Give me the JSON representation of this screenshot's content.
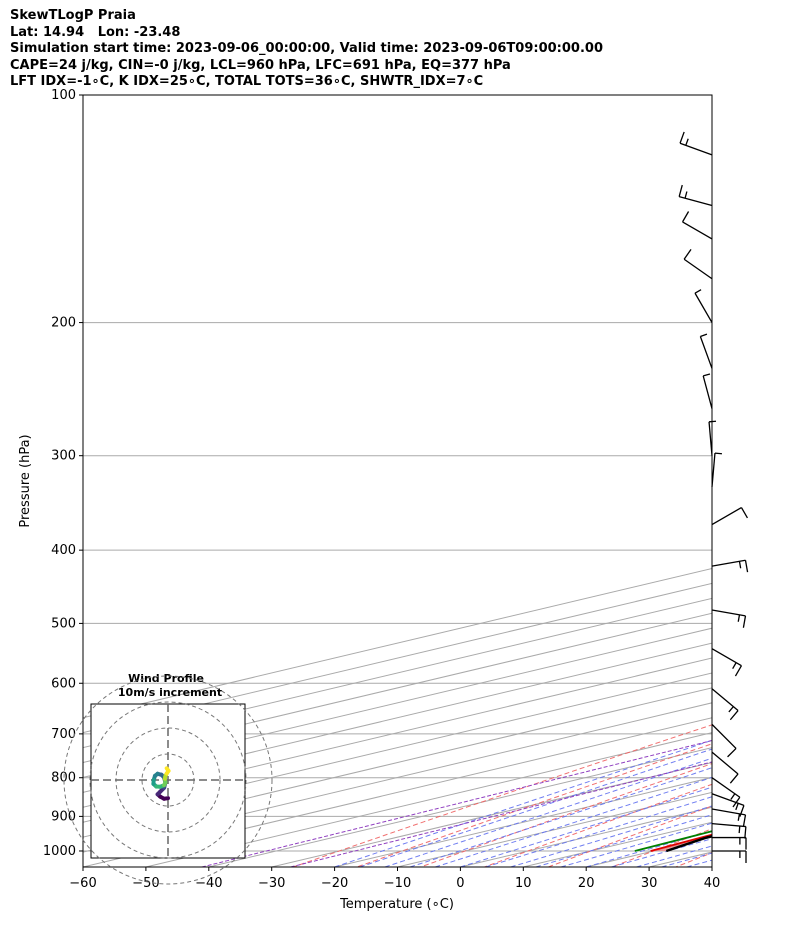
{
  "header": {
    "lines": [
      "SkewTLogP Praia",
      "Lat: 14.94   Lon: -23.48",
      "Simulation start time: 2023-09-06_00:00:00, Valid time: 2023-09-06T09:00:00.00",
      "CAPE=24 j/kg, CIN=-0 j/kg, LCL=960 hPa, LFC=691 hPa, EQ=377 hPa",
      "LFT IDX=-1∘C, K IDX=25∘C, TOTAL TOTS=36∘C, SHWTR_IDX=7∘C"
    ]
  },
  "colors": {
    "temperature": "#e00000",
    "dewpoint": "#008000",
    "parcel": "#000000",
    "cape_fill": "#f08080",
    "cin_fill": "#7bafd4",
    "dry_adiabat": "#f06060",
    "moist_adiabat": "#6070f0",
    "mixing_ratio": "#9040c0",
    "isotherm": "#aaaaaa"
  },
  "chart_data": [
    {
      "type": "line",
      "subtype": "skew-T log-P diagram",
      "xlabel": "Temperature (∘C)",
      "ylabel": "Pressure (hPa)",
      "xlim": [
        -60,
        40
      ],
      "ylim": [
        1050,
        100
      ],
      "y_scale": "log",
      "x_ticks": [
        "−60",
        "−50",
        "−40",
        "−30",
        "−20",
        "−10",
        "0",
        "10",
        "20",
        "30",
        "40"
      ],
      "x_tick_values": [
        -60,
        -50,
        -40,
        -30,
        -20,
        -10,
        0,
        10,
        20,
        30,
        40
      ],
      "y_ticks": [
        "100",
        "200",
        "300",
        "400",
        "500",
        "600",
        "700",
        "800",
        "900",
        "1000"
      ],
      "y_tick_values": [
        100,
        200,
        300,
        400,
        500,
        600,
        700,
        800,
        900,
        1000
      ],
      "grid": true,
      "series": [
        {
          "role": "temperature",
          "points": [
            [
              100,
              -4.5
            ],
            [
              105,
              -4.8
            ],
            [
              110,
              -6.5
            ],
            [
              115,
              -7.8
            ],
            [
              120,
              -8.5
            ],
            [
              125,
              -8.0
            ],
            [
              130,
              -7.5
            ],
            [
              140,
              -7.0
            ],
            [
              150,
              -6.8
            ],
            [
              160,
              -6.0
            ],
            [
              170,
              -5.3
            ],
            [
              180,
              -4.5
            ],
            [
              190,
              -3.6
            ],
            [
              200,
              -2.6
            ],
            [
              220,
              -0.8
            ],
            [
              250,
              1.3
            ],
            [
              280,
              3.3
            ],
            [
              300,
              4.5
            ],
            [
              320,
              5.6
            ],
            [
              350,
              7.0
            ],
            [
              380,
              8.2
            ],
            [
              400,
              9.0
            ],
            [
              420,
              9.7
            ],
            [
              450,
              10.7
            ],
            [
              480,
              11.6
            ],
            [
              500,
              12.2
            ],
            [
              550,
              13.5
            ],
            [
              600,
              14.8
            ],
            [
              650,
              16.2
            ],
            [
              700,
              17.6
            ],
            [
              750,
              19.0
            ],
            [
              800,
              20.2
            ],
            [
              830,
              20.5
            ],
            [
              860,
              19.8
            ],
            [
              890,
              17.8
            ],
            [
              920,
              17.5
            ],
            [
              960,
              18.5
            ],
            [
              1000,
              19.5
            ]
          ]
        },
        {
          "role": "dewpoint",
          "points": [
            [
              100,
              -9.0
            ],
            [
              110,
              -12.5
            ],
            [
              120,
              -15.5
            ],
            [
              130,
              -18.0
            ],
            [
              140,
              -23.0
            ],
            [
              150,
              -20.0
            ],
            [
              160,
              -16.5
            ],
            [
              180,
              -13.0
            ],
            [
              200,
              -10.0
            ],
            [
              220,
              -8.8
            ],
            [
              230,
              -8.8
            ],
            [
              240,
              -8.5
            ],
            [
              260,
              -7.5
            ],
            [
              280,
              -5.3
            ],
            [
              300,
              -6.3
            ],
            [
              320,
              -9.0
            ],
            [
              340,
              -12.5
            ],
            [
              360,
              -9.5
            ],
            [
              380,
              -3.5
            ],
            [
              400,
              0.8
            ],
            [
              420,
              3.2
            ],
            [
              450,
              5.6
            ],
            [
              500,
              8.4
            ],
            [
              550,
              8.5
            ],
            [
              600,
              9.0
            ],
            [
              650,
              9.8
            ],
            [
              700,
              11.5
            ],
            [
              750,
              11.9
            ],
            [
              800,
              9.5
            ],
            [
              830,
              6.0
            ],
            [
              850,
              5.0
            ],
            [
              870,
              7.5
            ],
            [
              890,
              12.5
            ],
            [
              910,
              15.5
            ],
            [
              950,
              16.2
            ],
            [
              1000,
              17.0
            ]
          ]
        },
        {
          "role": "parcel",
          "points": [
            [
              100,
              -29.5
            ],
            [
              120,
              -24.2
            ],
            [
              150,
              -17.6
            ],
            [
              200,
              -10.2
            ],
            [
              250,
              -4.7
            ],
            [
              300,
              -0.2
            ],
            [
              350,
              3.7
            ],
            [
              400,
              7.1
            ],
            [
              450,
              10.0
            ],
            [
              500,
              12.4
            ],
            [
              550,
              14.3
            ],
            [
              600,
              15.8
            ],
            [
              650,
              16.9
            ],
            [
              700,
              17.8
            ],
            [
              750,
              18.4
            ],
            [
              800,
              18.8
            ],
            [
              850,
              19.2
            ],
            [
              900,
              19.5
            ],
            [
              960,
              19.4
            ],
            [
              1000,
              22.0
            ]
          ]
        }
      ]
    },
    {
      "type": "line",
      "subtype": "hodograph",
      "title": "Wind Profile",
      "subtitle": "10m/s increment",
      "rings_ms": [
        10,
        20,
        30,
        40
      ],
      "series": [
        {
          "role": "wind",
          "points": [
            [
              0.0,
              -7.0
            ],
            [
              -1.5,
              -7.2
            ],
            [
              -3.0,
              -6.4
            ],
            [
              -4.0,
              -5.5
            ],
            [
              -3.0,
              -4.5
            ],
            [
              -1.5,
              -3.0
            ],
            [
              -1.0,
              -1.0
            ],
            [
              -1.5,
              1.0
            ],
            [
              -2.5,
              2.0
            ],
            [
              -4.0,
              2.4
            ],
            [
              -5.0,
              1.6
            ],
            [
              -5.5,
              0.0
            ],
            [
              -5.6,
              -1.5
            ],
            [
              -4.5,
              -2.5
            ],
            [
              -3.0,
              -2.6
            ],
            [
              -1.5,
              -2.0
            ],
            [
              -1.0,
              -1.0
            ],
            [
              -1.2,
              0.5
            ],
            [
              -1.0,
              1.5
            ],
            [
              -0.5,
              2.5
            ],
            [
              0.2,
              3.5
            ],
            [
              -0.5,
              4.5
            ]
          ]
        }
      ]
    },
    {
      "type": "wind_barbs",
      "barbs": [
        {
          "pressure": 120,
          "speed_kt": 15,
          "dir_deg": 290
        },
        {
          "pressure": 140,
          "speed_kt": 15,
          "dir_deg": 285
        },
        {
          "pressure": 155,
          "speed_kt": 10,
          "dir_deg": 300
        },
        {
          "pressure": 175,
          "speed_kt": 10,
          "dir_deg": 305
        },
        {
          "pressure": 200,
          "speed_kt": 5,
          "dir_deg": 330
        },
        {
          "pressure": 230,
          "speed_kt": 5,
          "dir_deg": 340
        },
        {
          "pressure": 260,
          "speed_kt": 5,
          "dir_deg": 345
        },
        {
          "pressure": 300,
          "speed_kt": 5,
          "dir_deg": 355
        },
        {
          "pressure": 330,
          "speed_kt": 5,
          "dir_deg": 5
        },
        {
          "pressure": 370,
          "speed_kt": 10,
          "dir_deg": 60
        },
        {
          "pressure": 420,
          "speed_kt": 15,
          "dir_deg": 80
        },
        {
          "pressure": 480,
          "speed_kt": 15,
          "dir_deg": 100
        },
        {
          "pressure": 540,
          "speed_kt": 15,
          "dir_deg": 120
        },
        {
          "pressure": 610,
          "speed_kt": 15,
          "dir_deg": 130
        },
        {
          "pressure": 680,
          "speed_kt": 10,
          "dir_deg": 135
        },
        {
          "pressure": 740,
          "speed_kt": 10,
          "dir_deg": 130
        },
        {
          "pressure": 800,
          "speed_kt": 15,
          "dir_deg": 125
        },
        {
          "pressure": 840,
          "speed_kt": 15,
          "dir_deg": 110
        },
        {
          "pressure": 880,
          "speed_kt": 15,
          "dir_deg": 100
        },
        {
          "pressure": 920,
          "speed_kt": 15,
          "dir_deg": 95
        },
        {
          "pressure": 960,
          "speed_kt": 15,
          "dir_deg": 90
        },
        {
          "pressure": 1000,
          "speed_kt": 15,
          "dir_deg": 90
        }
      ]
    }
  ]
}
